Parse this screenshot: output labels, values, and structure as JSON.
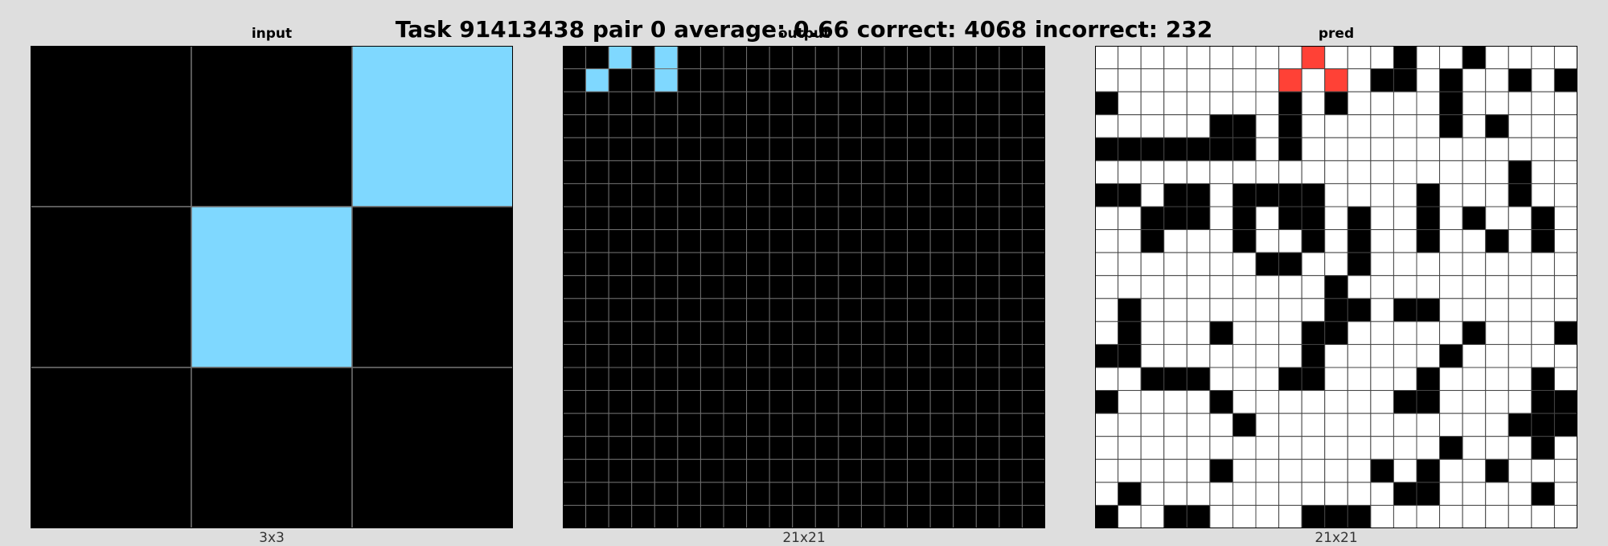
{
  "title": "Task 91413438 pair 0 average: 0.66 correct: 4068 incorrect: 232",
  "colors": {
    "background": "#dedede",
    "black": "#000000",
    "white": "#ffffff",
    "cyan": "#7fd8ff",
    "red": "#ff4136",
    "gridline_dark": "#6e6e6e",
    "gridline_light": "#444444"
  },
  "panels": [
    {
      "name": "input",
      "label": "input",
      "size_label": "3x3",
      "rows": [
        "002",
        "020",
        "000"
      ]
    },
    {
      "name": "output",
      "label": "output",
      "size_label": "21x21",
      "rows": [
        "002020000000000000000",
        "020020000000000000000",
        "000000000000000000000",
        "000000000000000000000",
        "000000000000000000000",
        "000000000000000000000",
        "000000000000000000000",
        "000000000000000000000",
        "000000000000000000000",
        "000000000000000000000",
        "000000000000000000000",
        "000000000000000000000",
        "000000000000000000000",
        "000000000000000000000",
        "000000000000000000000",
        "000000000000000000000",
        "000000000000000000000",
        "000000000000000000000",
        "000000000000000000000",
        "000000000000000000000",
        "000000000000000000000"
      ]
    },
    {
      "name": "pred",
      "label": "pred",
      "size_label": "21x21",
      "rows": [
        "111111111311101101111",
        "111111113131001011010",
        "011111110101111011111",
        "111110010111111010111",
        "000000010111111111111",
        "111111111111111111011",
        "001001000011110111011",
        "110001010010110101101",
        "110111011010110110101",
        "111111100110111111111",
        "111111111101111111111",
        "101111111100100111111",
        "101110111001111101110",
        "001111111011111011111",
        "110001110011110111101",
        "011110111111100111100",
        "111111011111111111000",
        "111111111111111011101",
        "111110111111010110111",
        "101111111111100111101",
        "011001111000111111111"
      ]
    }
  ]
}
